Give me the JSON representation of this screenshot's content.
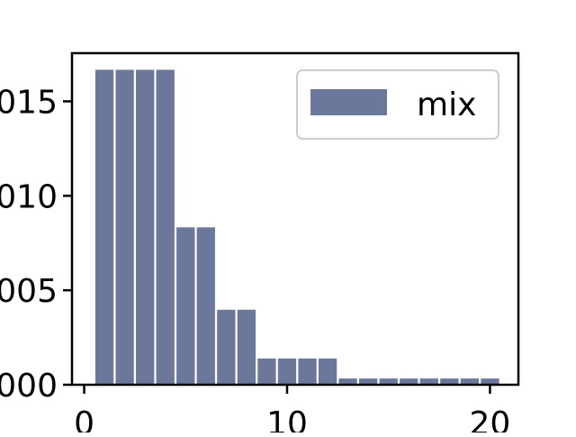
{
  "chart_data": {
    "type": "bar",
    "title": "",
    "xlabel": "",
    "ylabel": "",
    "xlim": [
      -0.6,
      21.4
    ],
    "ylim": [
      0,
      0.1755
    ],
    "bar_width": 0.9,
    "x": [
      1,
      2,
      3,
      4,
      5,
      6,
      7,
      8,
      9,
      10,
      11,
      12,
      13,
      14,
      15,
      16,
      17,
      18,
      19,
      20
    ],
    "series": [
      {
        "name": "mix",
        "color": "#6b789b",
        "values": [
          0.1667,
          0.1667,
          0.1667,
          0.1667,
          0.0833,
          0.0833,
          0.0397,
          0.0397,
          0.0139,
          0.0139,
          0.0139,
          0.0139,
          0.0033,
          0.0033,
          0.0033,
          0.0033,
          0.0033,
          0.0033,
          0.0033,
          0.0033
        ]
      }
    ],
    "x_ticks": [
      {
        "value": 0,
        "label": "0"
      },
      {
        "value": 10,
        "label": "10"
      },
      {
        "value": 20,
        "label": "20"
      }
    ],
    "y_ticks": [
      {
        "value": 0.0,
        "label": "000"
      },
      {
        "value": 0.05,
        "label": "005"
      },
      {
        "value": 0.1,
        "label": "010"
      },
      {
        "value": 0.15,
        "label": "015"
      }
    ],
    "legend": {
      "position": "top-right",
      "entries": [
        {
          "label": "mix",
          "color": "#6b789b"
        }
      ]
    },
    "grid": false
  }
}
